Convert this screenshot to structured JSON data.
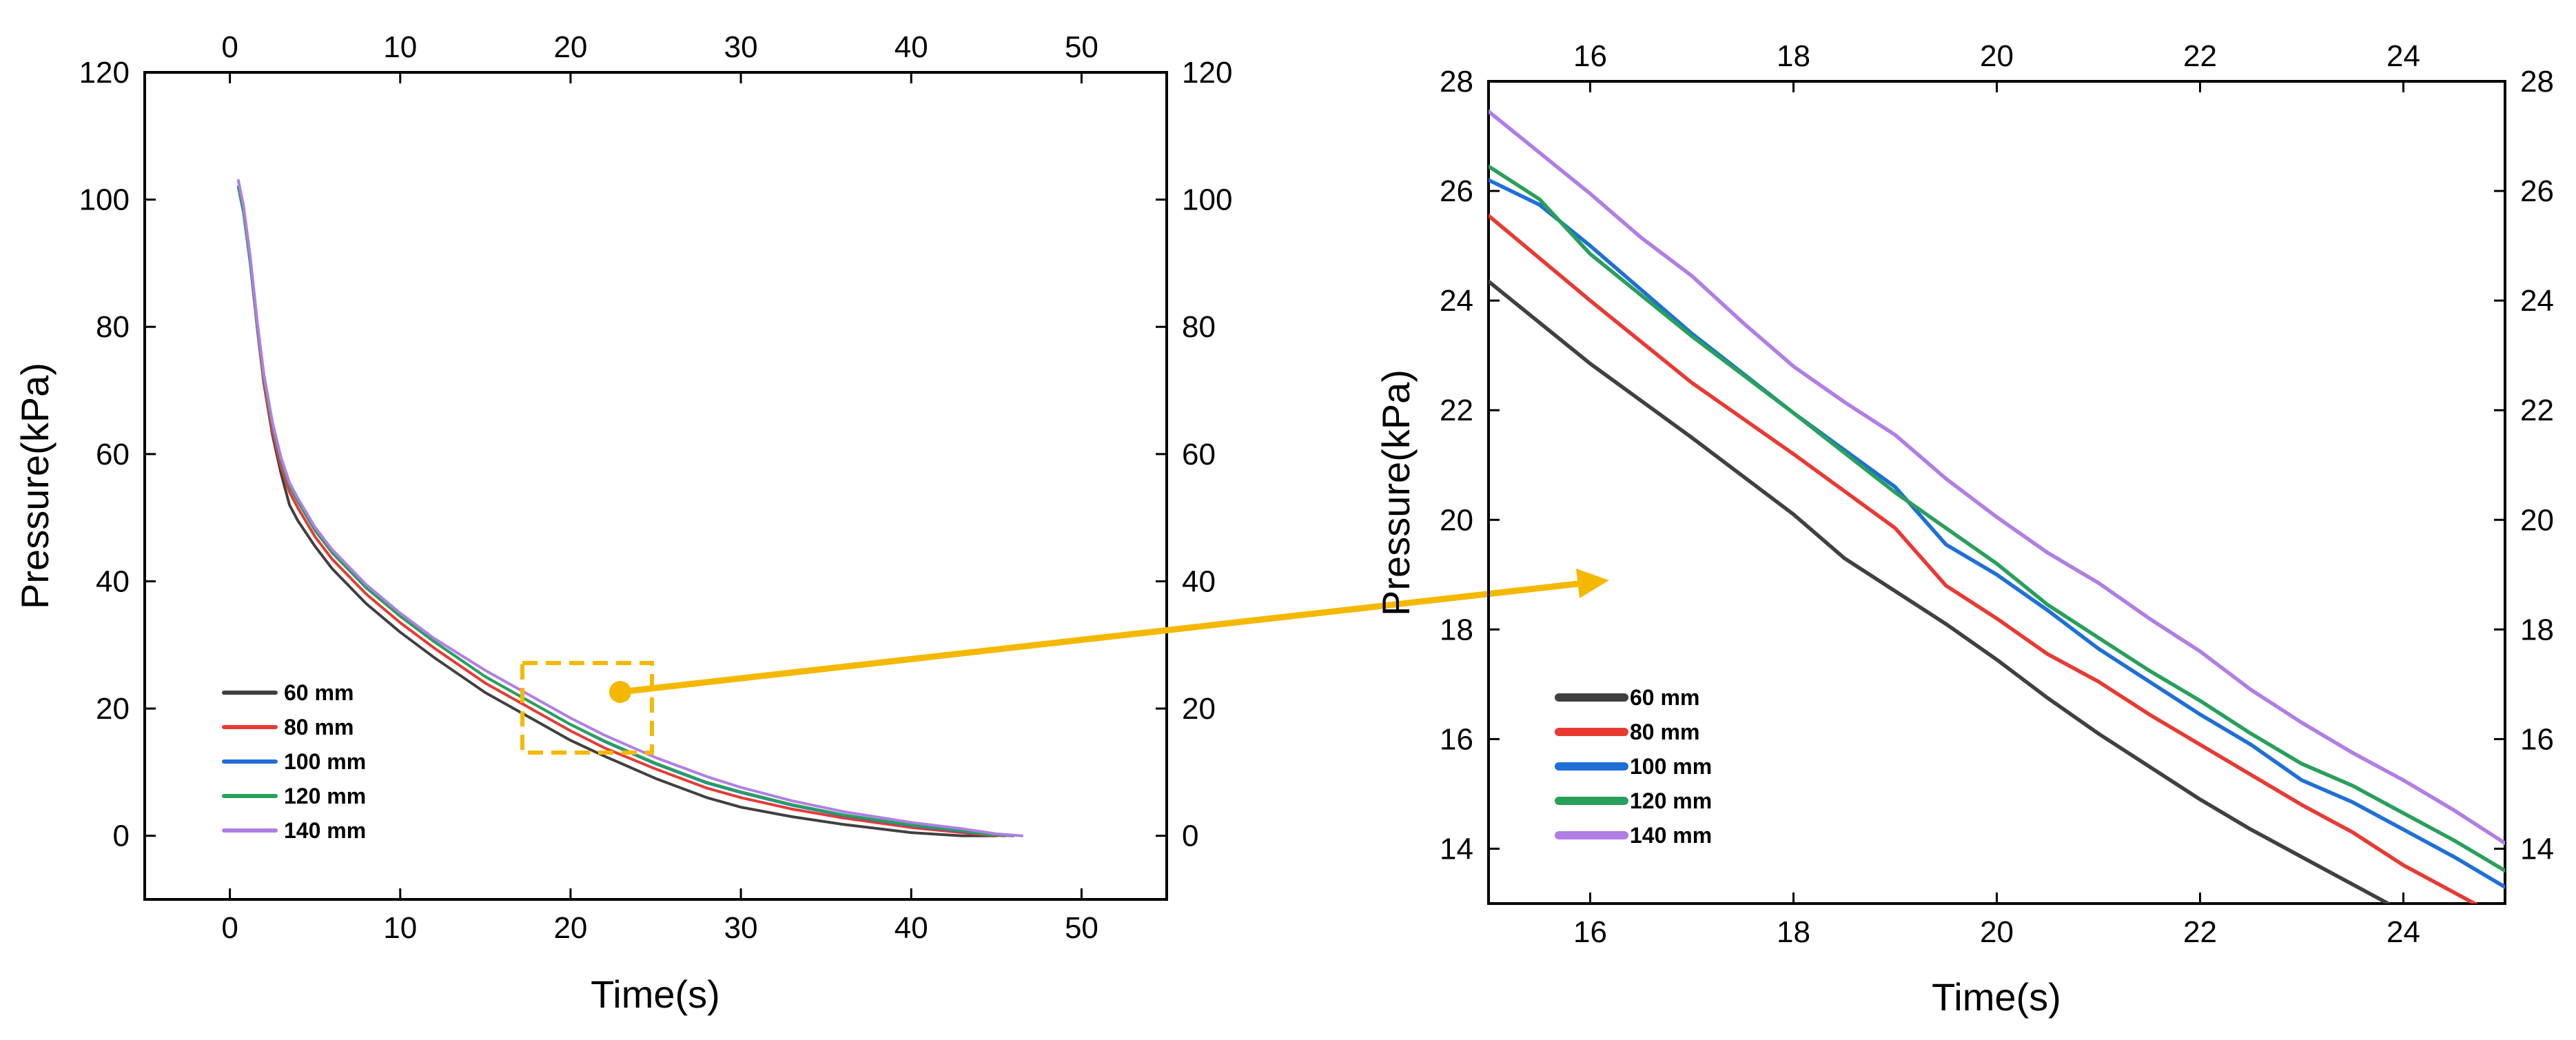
{
  "chart_data": [
    {
      "type": "line",
      "title": "",
      "xlabel": "Time(s)",
      "ylabel": "Pressure(kPa)",
      "xlim": [
        -5,
        55
      ],
      "ylim": [
        -10,
        120
      ],
      "xticks": [
        0,
        10,
        20,
        30,
        40,
        50
      ],
      "yticks": [
        0,
        20,
        40,
        60,
        80,
        100,
        120
      ],
      "mirror_axes": true,
      "legend_position": "bottom-left",
      "series": [
        {
          "name": "60 mm",
          "color": "#404040",
          "x": [
            0.5,
            0.8,
            1.2,
            1.6,
            2,
            2.5,
            3,
            3.5,
            4,
            5,
            6,
            8,
            10,
            12,
            15,
            18,
            20,
            22,
            25,
            28,
            30,
            33,
            36,
            40,
            43,
            44,
            45
          ],
          "y": [
            102,
            98,
            90,
            80,
            71,
            63,
            57,
            52,
            49.5,
            45.5,
            42,
            36.5,
            32,
            28,
            22.5,
            18,
            15,
            12.5,
            9,
            6,
            4.5,
            3,
            1.8,
            0.5,
            0,
            0,
            0
          ]
        },
        {
          "name": "80 mm",
          "color": "#e83a33",
          "x": [
            0.5,
            0.8,
            1.2,
            1.6,
            2,
            2.5,
            3,
            3.5,
            4,
            5,
            6,
            8,
            10,
            12,
            15,
            18,
            20,
            22,
            25,
            28,
            30,
            33,
            36,
            40,
            43,
            44.5,
            45.5
          ],
          "y": [
            102,
            98,
            90,
            80,
            71,
            63.5,
            58,
            54,
            51.5,
            47,
            43.5,
            38,
            33.5,
            29.5,
            24,
            19.5,
            16.5,
            13.8,
            10.5,
            7.5,
            6,
            4.2,
            2.8,
            1.3,
            0.5,
            0.1,
            0
          ]
        },
        {
          "name": "100 mm",
          "color": "#1f6fd8",
          "x": [
            0.5,
            0.8,
            1.2,
            1.6,
            2,
            2.5,
            3,
            3.5,
            4,
            5,
            6,
            8,
            10,
            12,
            15,
            18,
            20,
            22,
            25,
            28,
            30,
            33,
            36,
            40,
            43,
            44.5,
            46
          ],
          "y": [
            102,
            98,
            90,
            80.5,
            72,
            64.5,
            59,
            55,
            52.5,
            48,
            44.5,
            39,
            34.5,
            30.5,
            25,
            20.5,
            17.5,
            14.8,
            11.3,
            8.3,
            6.8,
            4.8,
            3.2,
            1.6,
            0.7,
            0.2,
            0
          ]
        },
        {
          "name": "120 mm",
          "color": "#28a05a",
          "x": [
            0.5,
            0.8,
            1.2,
            1.6,
            2,
            2.5,
            3,
            3.5,
            4,
            5,
            6,
            8,
            10,
            12,
            15,
            18,
            20,
            22,
            25,
            28,
            30,
            33,
            36,
            40,
            43,
            44.5,
            46
          ],
          "y": [
            102,
            98,
            90,
            80.5,
            72,
            64.5,
            59,
            55,
            52.5,
            48,
            44.5,
            39,
            34.5,
            30.5,
            25,
            20.5,
            17.5,
            14.9,
            11.4,
            8.4,
            6.9,
            4.9,
            3.3,
            1.7,
            0.8,
            0.2,
            0
          ]
        },
        {
          "name": "140 mm",
          "color": "#b07ee6",
          "x": [
            0.5,
            0.8,
            1.2,
            1.6,
            2,
            2.5,
            3,
            3.5,
            4,
            5,
            6,
            8,
            10,
            12,
            15,
            18,
            20,
            22,
            25,
            28,
            30,
            33,
            36,
            40,
            43,
            45,
            46.5
          ],
          "y": [
            103,
            99,
            91,
            81,
            72.5,
            65,
            59.5,
            55.5,
            53,
            48.5,
            45,
            39.5,
            35,
            31,
            26,
            21.5,
            18.5,
            15.8,
            12.3,
            9.3,
            7.6,
            5.5,
            3.8,
            2.1,
            1.1,
            0.3,
            0
          ]
        }
      ]
    },
    {
      "type": "line",
      "title": "",
      "xlabel": "Time(s)",
      "ylabel": "Pressure(kPa)",
      "xlim": [
        15,
        25
      ],
      "ylim": [
        13,
        28
      ],
      "xticks": [
        16,
        18,
        20,
        22,
        24
      ],
      "yticks": [
        14,
        16,
        18,
        20,
        22,
        24,
        26,
        28
      ],
      "mirror_axes": true,
      "legend_position": "bottom-left",
      "series": [
        {
          "name": "60 mm",
          "color": "#404040",
          "x": [
            15,
            16,
            17,
            18,
            18.5,
            19,
            19.5,
            20,
            20.5,
            21,
            21.5,
            22,
            22.5,
            23,
            23.5,
            23.85
          ],
          "y": [
            24.35,
            22.85,
            21.5,
            20.1,
            19.3,
            18.7,
            18.1,
            17.45,
            16.75,
            16.1,
            15.5,
            14.9,
            14.35,
            13.85,
            13.35,
            13.0
          ]
        },
        {
          "name": "80 mm",
          "color": "#e83a33",
          "x": [
            15,
            16,
            17,
            18,
            19,
            19.5,
            20,
            20.5,
            21,
            21.5,
            22,
            22.5,
            23,
            23.5,
            24,
            24.5,
            24.75
          ],
          "y": [
            25.55,
            24.0,
            22.5,
            21.2,
            19.85,
            18.8,
            18.2,
            17.55,
            17.05,
            16.45,
            15.9,
            15.35,
            14.8,
            14.3,
            13.7,
            13.2,
            12.95
          ]
        },
        {
          "name": "100 mm",
          "color": "#1f6fd8",
          "x": [
            15,
            15.5,
            16,
            17,
            18,
            19,
            19.5,
            20,
            20.5,
            21,
            21.5,
            22,
            22.5,
            23,
            23.5,
            24,
            24.5,
            25
          ],
          "y": [
            26.2,
            25.75,
            25.0,
            23.4,
            21.95,
            20.6,
            19.55,
            19.0,
            18.35,
            17.65,
            17.05,
            16.45,
            15.9,
            15.25,
            14.85,
            14.35,
            13.85,
            13.3
          ]
        },
        {
          "name": "120 mm",
          "color": "#28a05a",
          "x": [
            15,
            15.5,
            16,
            17,
            18,
            19,
            20,
            20.5,
            21,
            21.5,
            22,
            22.5,
            23,
            23.5,
            24,
            24.5,
            25
          ],
          "y": [
            26.45,
            25.85,
            24.85,
            23.35,
            21.95,
            20.5,
            19.2,
            18.45,
            17.85,
            17.25,
            16.7,
            16.1,
            15.55,
            15.15,
            14.65,
            14.15,
            13.6
          ]
        },
        {
          "name": "140 mm",
          "color": "#b07ee6",
          "x": [
            15,
            15.5,
            16,
            16.5,
            17,
            17.5,
            18,
            18.5,
            19,
            19.5,
            20,
            20.5,
            21,
            21.5,
            22,
            22.5,
            23,
            23.5,
            24,
            24.5,
            25
          ],
          "y": [
            27.45,
            26.7,
            25.95,
            25.15,
            24.45,
            23.6,
            22.8,
            22.15,
            21.55,
            20.75,
            20.05,
            19.4,
            18.85,
            18.2,
            17.6,
            16.9,
            16.3,
            15.75,
            15.25,
            14.7,
            14.1
          ]
        }
      ]
    }
  ]
}
